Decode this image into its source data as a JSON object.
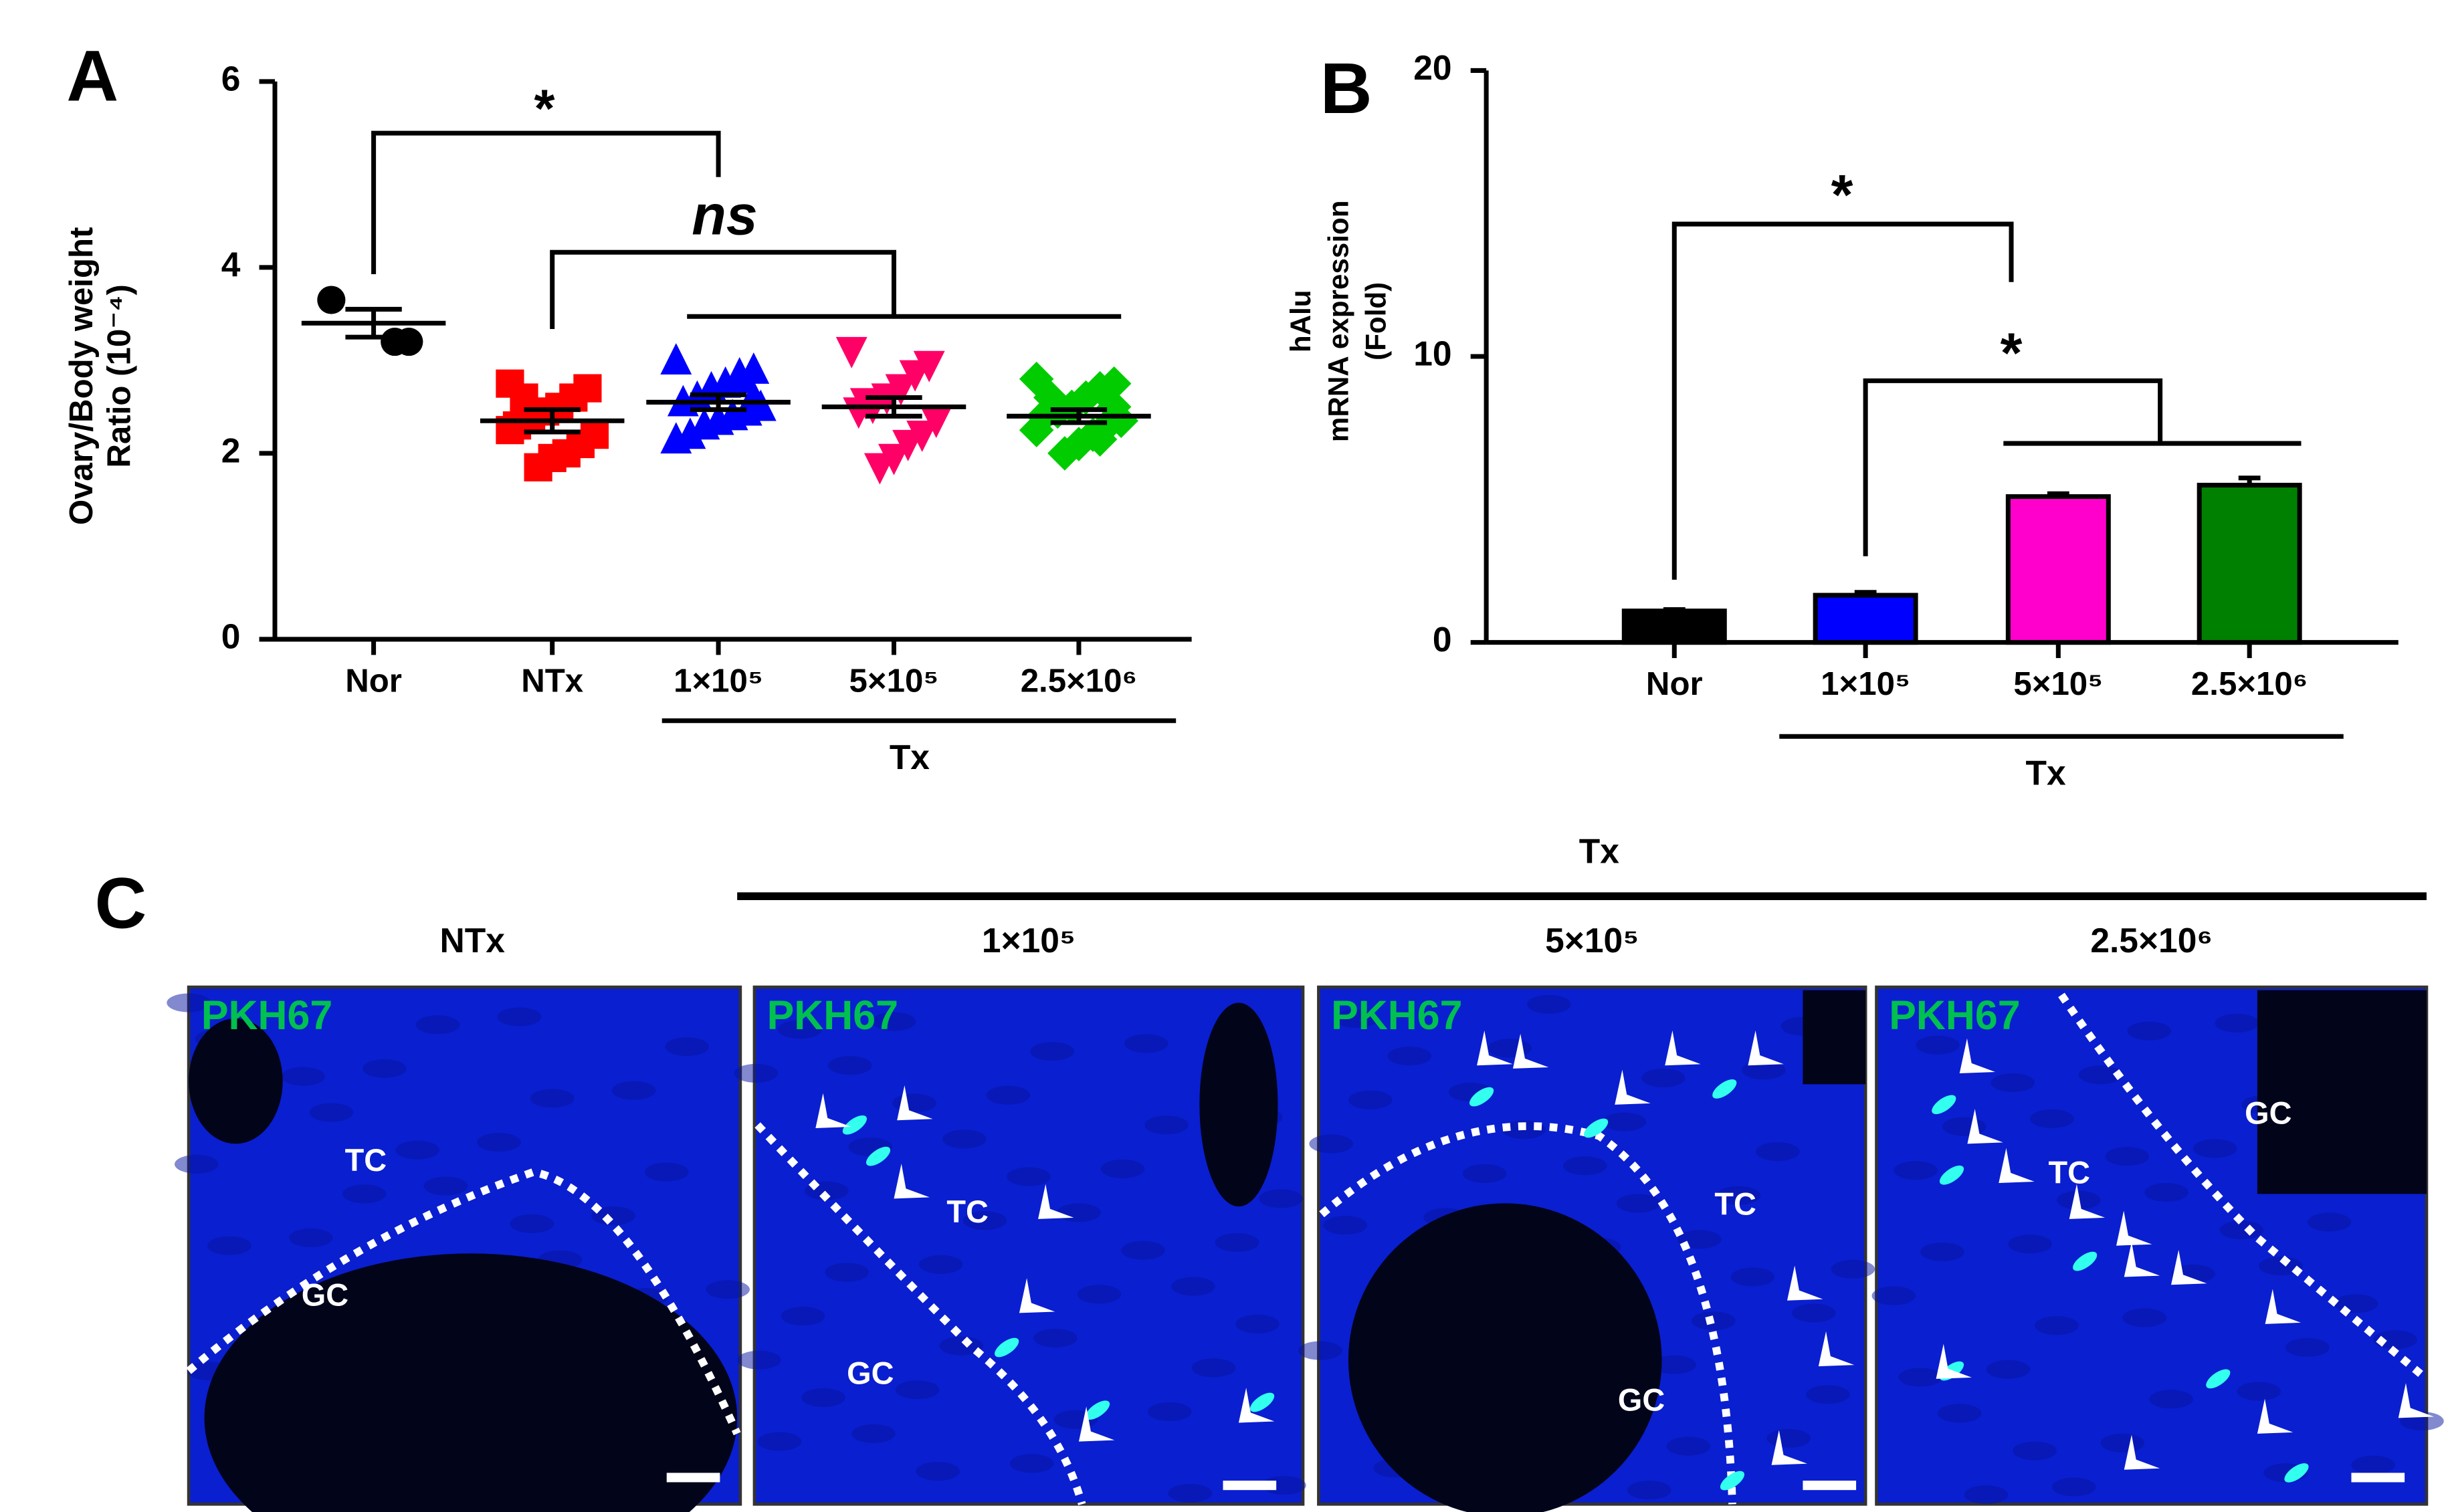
{
  "chart_data": [
    {
      "type": "dotplot",
      "panel": "A",
      "ylabel": [
        "Ovary/Body weight",
        "Ratio (10⁻⁴)"
      ],
      "ylim": [
        0,
        6
      ],
      "yticks": [
        0,
        2,
        4,
        6
      ],
      "categories": [
        "Nor",
        "NTx",
        "1×10⁵",
        "5×10⁵",
        "2.5×10⁶"
      ],
      "markers": [
        "circle",
        "square",
        "triangle",
        "triangle-down",
        "diamond"
      ],
      "colors": [
        "#000000",
        "#ff0000",
        "#0000ff",
        "#ff0066",
        "#00cc00"
      ],
      "points": [
        [
          3.65,
          3.2,
          3.2
        ],
        [
          2.75,
          2.7,
          2.6,
          2.5,
          2.45,
          2.4,
          2.3,
          2.2,
          2.1,
          2.0,
          1.95,
          1.85,
          2.6,
          2.25
        ],
        [
          3.0,
          2.9,
          2.8,
          2.75,
          2.7,
          2.6,
          2.55,
          2.5,
          2.45,
          2.4,
          2.35,
          2.3,
          2.2,
          2.15,
          2.6,
          2.85
        ],
        [
          3.1,
          2.95,
          2.85,
          2.7,
          2.6,
          2.5,
          2.45,
          2.35,
          2.2,
          2.1,
          1.95,
          1.85,
          2.55
        ],
        [
          2.8,
          2.75,
          2.7,
          2.6,
          2.5,
          2.45,
          2.4,
          2.35,
          2.3,
          2.2,
          2.1,
          2.0,
          2.6,
          2.25,
          2.5,
          2.15
        ]
      ],
      "means": [
        3.4,
        2.35,
        2.55,
        2.5,
        2.4
      ],
      "errors": [
        0.15,
        0.12,
        0.08,
        0.1,
        0.07
      ],
      "annotations": [
        "*",
        "ns"
      ],
      "group_label": "Tx"
    },
    {
      "type": "bar",
      "panel": "B",
      "ylabel": [
        "hAlu",
        "mRNA expression",
        "(Fold)"
      ],
      "ylim": [
        0,
        20
      ],
      "yticks": [
        0,
        10,
        20
      ],
      "categories": [
        "Nor",
        "1×10⁵",
        "5×10⁵",
        "2.5×10⁶"
      ],
      "values": [
        1.1,
        1.65,
        5.1,
        5.5
      ],
      "errors": [
        0.05,
        0.1,
        0.1,
        0.25
      ],
      "colors": [
        "#000000",
        "#0000ff",
        "#ff00cc",
        "#008000"
      ],
      "annotations": [
        "*",
        "*"
      ],
      "group_label": "Tx"
    }
  ],
  "panel_c": {
    "panel": "C",
    "group_label": "Tx",
    "images": [
      {
        "title": "NTx",
        "stain": "PKH67",
        "regions": [
          "TC",
          "GC"
        ]
      },
      {
        "title": "1×10⁵",
        "stain": "PKH67",
        "regions": [
          "TC",
          "GC"
        ]
      },
      {
        "title": "5×10⁵",
        "stain": "PKH67",
        "regions": [
          "TC",
          "GC"
        ]
      },
      {
        "title": "2.5×10⁶",
        "stain": "PKH67",
        "regions": [
          "GC",
          "TC"
        ]
      }
    ]
  }
}
